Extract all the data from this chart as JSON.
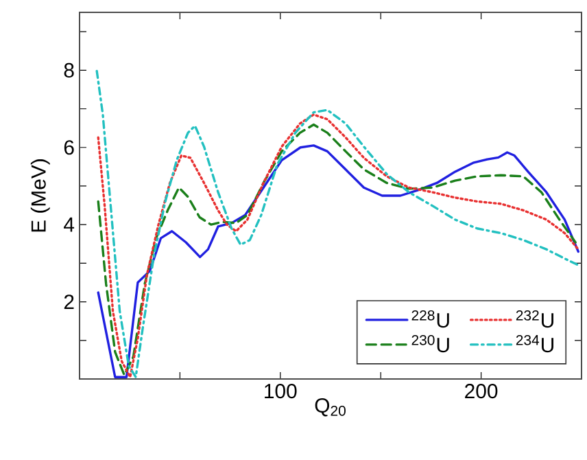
{
  "chart_data": {
    "type": "line",
    "xlabel": "Q$_{20}$",
    "ylabel": "E (MeV)",
    "xlim": [
      0,
      250
    ],
    "ylim": [
      0,
      9.5
    ],
    "xticks": [
      {
        "value": 50,
        "label": null
      },
      100,
      {
        "value": 150,
        "label": null
      },
      200
    ],
    "yticks": [
      {
        "value": 1,
        "label": null
      },
      2,
      {
        "value": 3,
        "label": null
      },
      4,
      {
        "value": 5,
        "label": null
      },
      6,
      {
        "value": 7,
        "label": null
      },
      8,
      {
        "value": 9,
        "label": null
      }
    ],
    "grid": false,
    "legend": "bottom right",
    "series": [
      {
        "name": "$^{228}$U",
        "color": "#2020e0",
        "line_style": "solid",
        "x": [
          9.3,
          17.7,
          23.4,
          29,
          35,
          40.5,
          46,
          53,
          60,
          64,
          69,
          75.7,
          82.5,
          91.6,
          100.7,
          110,
          116.6,
          123.4,
          132.5,
          141.6,
          150.7,
          159.8,
          168.9,
          178,
          187,
          196,
          203,
          208.6,
          213,
          216.6,
          223.4,
          232.5,
          241.6,
          248.4
        ],
        "values": [
          2.24,
          0.05,
          0.05,
          2.5,
          2.8,
          3.65,
          3.83,
          3.54,
          3.16,
          3.36,
          3.95,
          4.04,
          4.25,
          4.96,
          5.67,
          6.0,
          6.05,
          5.9,
          5.43,
          4.96,
          4.75,
          4.75,
          4.9,
          5.08,
          5.37,
          5.6,
          5.69,
          5.74,
          5.87,
          5.79,
          5.37,
          4.84,
          4.13,
          3.3
        ]
      },
      {
        "name": "$^{230}$U",
        "color": "#1a7f1a",
        "line_style": "dashed",
        "x": [
          9.3,
          13.2,
          17.7,
          22.3,
          26.8,
          32.5,
          38.2,
          43.9,
          49.5,
          54,
          59.8,
          65.5,
          71,
          78,
          83.6,
          91.6,
          100.7,
          109.8,
          116.6,
          123.4,
          132.5,
          141.6,
          153,
          164,
          175.7,
          187,
          198,
          209.8,
          221,
          230,
          239,
          247
        ],
        "values": [
          4.6,
          2.47,
          0.7,
          0.1,
          0.58,
          2.47,
          3.66,
          4.37,
          4.96,
          4.72,
          4.19,
          4.0,
          4.07,
          4.04,
          4.25,
          5.08,
          5.9,
          6.38,
          6.59,
          6.38,
          5.9,
          5.43,
          5.08,
          4.93,
          4.96,
          5.14,
          5.25,
          5.28,
          5.25,
          4.84,
          4.13,
          3.54
        ]
      },
      {
        "name": "$^{232}$U",
        "color": "#e83030",
        "line_style": "dotted",
        "x": [
          9.3,
          12.5,
          16.6,
          21,
          25.2,
          29,
          33.6,
          39.3,
          45,
          50.7,
          55.2,
          62,
          69,
          73.4,
          78,
          83.6,
          91.6,
          100.7,
          109.8,
          116.6,
          123.4,
          132.5,
          141.6,
          153,
          164,
          175.7,
          187,
          198,
          209.8,
          221,
          232.5,
          241.6,
          248.4
        ],
        "values": [
          6.26,
          4.49,
          1.76,
          0.46,
          0.05,
          1.05,
          2.71,
          4.0,
          5.08,
          5.79,
          5.73,
          5.08,
          4.37,
          4.0,
          3.83,
          4.13,
          5.08,
          6.02,
          6.62,
          6.85,
          6.73,
          6.26,
          5.73,
          5.25,
          4.96,
          4.84,
          4.7,
          4.6,
          4.54,
          4.37,
          4.13,
          3.78,
          3.36
        ]
      },
      {
        "name": "$^{234}$U",
        "color": "#22c0c0",
        "line_style": "dashdot",
        "x": [
          8.6,
          11.6,
          15.5,
          20,
          24.5,
          28,
          31.4,
          37,
          42.7,
          48.4,
          54,
          57.5,
          62,
          69,
          75.7,
          80.2,
          84.8,
          90.5,
          98.4,
          107.5,
          116.6,
          123.4,
          132.5,
          141.6,
          153,
          164,
          175.7,
          187,
          198,
          209.8,
          221,
          232.5,
          241.6,
          248.4
        ],
        "values": [
          7.98,
          6.85,
          4.49,
          1.76,
          0.34,
          0.05,
          1.29,
          3.18,
          4.6,
          5.67,
          6.38,
          6.56,
          6.02,
          4.84,
          3.9,
          3.48,
          3.6,
          4.25,
          5.55,
          6.38,
          6.91,
          6.97,
          6.62,
          6.02,
          5.31,
          4.84,
          4.49,
          4.13,
          3.9,
          3.78,
          3.6,
          3.36,
          3.12,
          2.95
        ]
      }
    ]
  }
}
